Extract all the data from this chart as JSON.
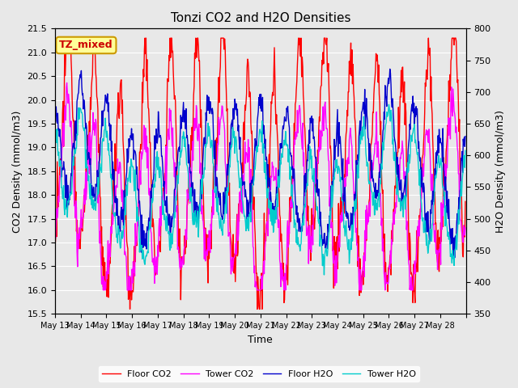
{
  "title": "Tonzi CO2 and H2O Densities",
  "xlabel": "Time",
  "ylabel_left": "CO2 Density (mmol/m3)",
  "ylabel_right": "H2O Density (mmol/m3)",
  "ylim_left": [
    15.5,
    21.5
  ],
  "ylim_right": [
    350,
    800
  ],
  "yticks_left": [
    15.5,
    16.0,
    16.5,
    17.0,
    17.5,
    18.0,
    18.5,
    19.0,
    19.5,
    20.0,
    20.5,
    21.0,
    21.5
  ],
  "yticks_right": [
    350,
    400,
    450,
    500,
    550,
    600,
    650,
    700,
    750,
    800
  ],
  "xtick_labels": [
    "May 13",
    "May 14",
    "May 15",
    "May 16",
    "May 17",
    "May 18",
    "May 19",
    "May 20",
    "May 21",
    "May 22",
    "May 23",
    "May 24",
    "May 25",
    "May 26",
    "May 27",
    "May 28"
  ],
  "annotation_text": "TZ_mixed",
  "annotation_color": "#cc0000",
  "annotation_bg": "#ffff99",
  "annotation_border": "#cc9900",
  "colors": {
    "floor_co2": "#ff0000",
    "tower_co2": "#ff00ff",
    "floor_h2o": "#0000cc",
    "tower_h2o": "#00cccc"
  },
  "legend_labels": [
    "Floor CO2",
    "Tower CO2",
    "Floor H2O",
    "Tower H2O"
  ],
  "fig_facecolor": "#e8e8e8",
  "plot_facecolor": "#e8e8e8",
  "grid_color": "#ffffff",
  "linewidth": 1.0,
  "n_days": 16,
  "points_per_day": 48
}
